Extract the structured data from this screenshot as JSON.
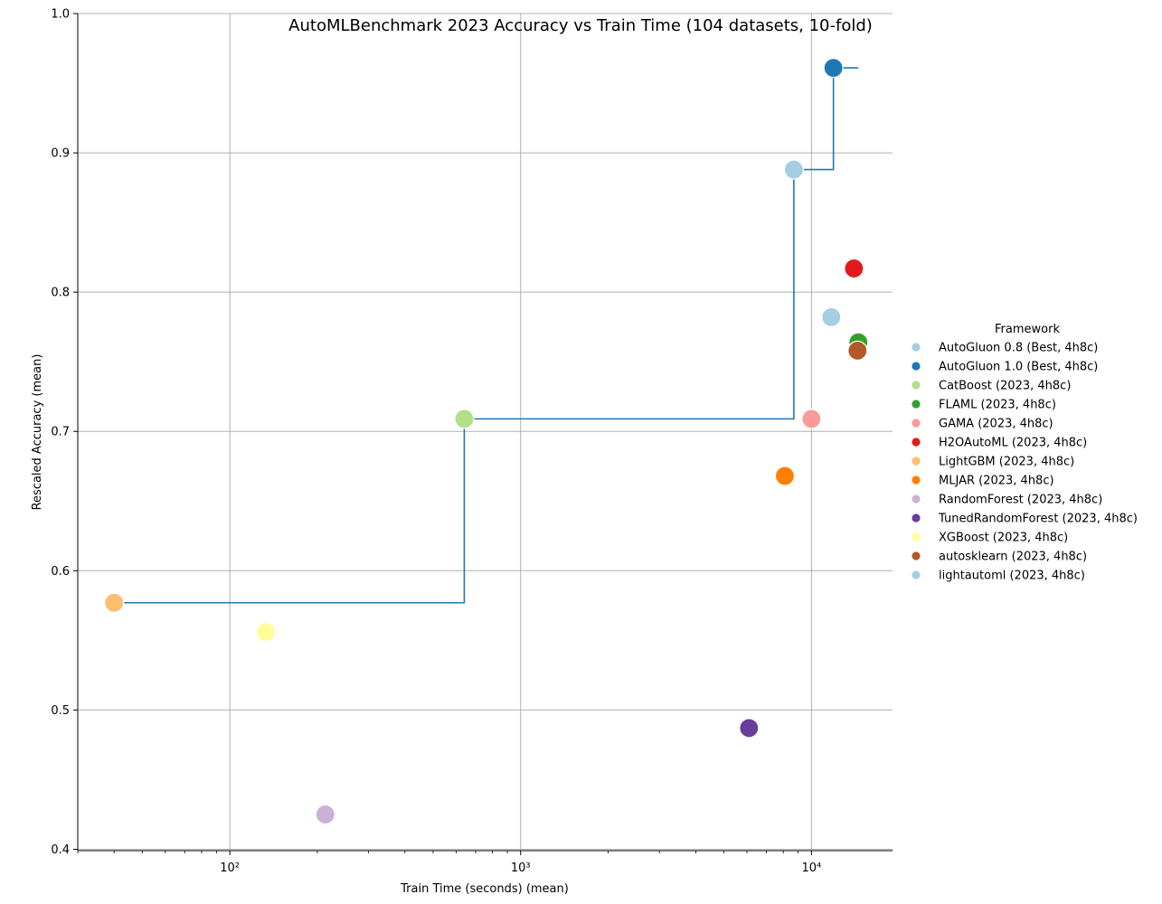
{
  "chart_data": {
    "type": "scatter",
    "title": "AutoMLBenchmark 2023 Accuracy vs Train Time (104 datasets, 10-fold)",
    "xlabel": "Train Time (seconds) (mean)",
    "ylabel": "Rescaled Accuracy (mean)",
    "xscale": "log",
    "xlim": [
      30,
      19000
    ],
    "ylim": [
      0.399,
      1.0
    ],
    "x_ticks": [
      {
        "value": 100,
        "label": "10²"
      },
      {
        "value": 1000,
        "label": "10³"
      },
      {
        "value": 10000,
        "label": "10⁴"
      }
    ],
    "y_ticks": [
      0.4,
      0.5,
      0.6,
      0.7,
      0.8,
      0.9,
      1.0
    ],
    "grid": true,
    "legend_title": "Framework",
    "legend_position": "right",
    "series": [
      {
        "name": "AutoGluon 0.8 (Best, 4h8c)",
        "color": "#a6cee3",
        "x": 8700,
        "y": 0.888
      },
      {
        "name": "AutoGluon 1.0 (Best, 4h8c)",
        "color": "#1f78b4",
        "x": 11900,
        "y": 0.961
      },
      {
        "name": "CatBoost (2023, 4h8c)",
        "color": "#b2df8a",
        "x": 640,
        "y": 0.709
      },
      {
        "name": "FLAML (2023, 4h8c)",
        "color": "#33a02c",
        "x": 14500,
        "y": 0.764
      },
      {
        "name": "GAMA (2023, 4h8c)",
        "color": "#fb9a99",
        "x": 10000,
        "y": 0.709
      },
      {
        "name": "H2OAutoML (2023, 4h8c)",
        "color": "#e31a1c",
        "x": 14000,
        "y": 0.817
      },
      {
        "name": "LightGBM (2023, 4h8c)",
        "color": "#fdbf6f",
        "x": 40,
        "y": 0.577
      },
      {
        "name": "MLJAR (2023, 4h8c)",
        "color": "#ff7f00",
        "x": 8100,
        "y": 0.668
      },
      {
        "name": "RandomForest (2023, 4h8c)",
        "color": "#cab2d6",
        "x": 213,
        "y": 0.425
      },
      {
        "name": "TunedRandomForest (2023, 4h8c)",
        "color": "#6a3d9a",
        "x": 6100,
        "y": 0.487
      },
      {
        "name": "XGBoost (2023, 4h8c)",
        "color": "#ffff99",
        "x": 133,
        "y": 0.556
      },
      {
        "name": "autosklearn (2023, 4h8c)",
        "color": "#b15928",
        "x": 14400,
        "y": 0.758
      },
      {
        "name": "lightautoml (2023, 4h8c)",
        "color": "#a6cee3",
        "x": 11700,
        "y": 0.782
      }
    ],
    "pareto_front": {
      "color": "#1f78b4",
      "x": [
        40,
        640,
        8700,
        11900,
        14500
      ],
      "y": [
        0.577,
        0.709,
        0.888,
        0.961,
        0.961
      ]
    }
  }
}
